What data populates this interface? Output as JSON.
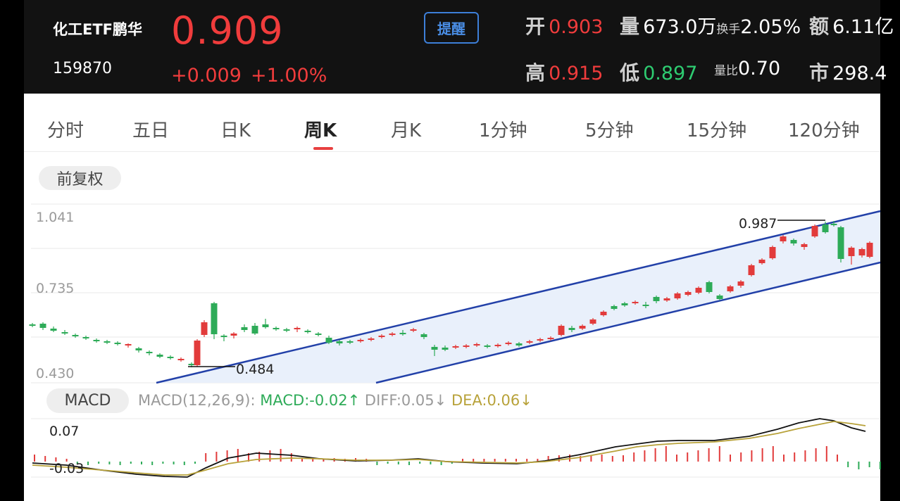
{
  "header": {
    "name": "化工ETF鹏华",
    "code": "159870",
    "price": "0.909",
    "change": "+0.009",
    "change_pct": "+1.00%",
    "remind_label": "提醒",
    "stats": {
      "open_label": "开",
      "open": "0.903",
      "volume_label": "量",
      "volume": "673.0万",
      "turnover_label": "换手",
      "turnover": "2.05%",
      "amount_label": "额",
      "amount": "6.11亿",
      "high_label": "高",
      "high": "0.915",
      "low_label": "低",
      "low": "0.897",
      "vol_ratio_label": "量比",
      "vol_ratio": "0.70",
      "mkt_label": "市",
      "mkt": "298.4"
    }
  },
  "tabs": [
    "分时",
    "五日",
    "日K",
    "周K",
    "月K",
    "1分钟",
    "5分钟",
    "15分钟",
    "120分钟"
  ],
  "active_tab": "周K",
  "adjust_label": "前复权",
  "kline": {
    "y_labels": [
      "1.041",
      "0.735",
      "0.430"
    ],
    "low_marker": "0.484",
    "high_marker": "0.987"
  },
  "macd": {
    "pill": "MACD",
    "params": "MACD(12,26,9):",
    "macd_value": "MACD:-0.02↑",
    "diff_value": "DIFF:0.05↓",
    "dea_value": "DEA:0.06↓",
    "y_top": "0.07",
    "y_bottom": "-0.03"
  },
  "colors": {
    "up": "#e23b3b",
    "down": "#2eab58",
    "channel": "#2240a8",
    "dea": "#b8a23a"
  }
}
